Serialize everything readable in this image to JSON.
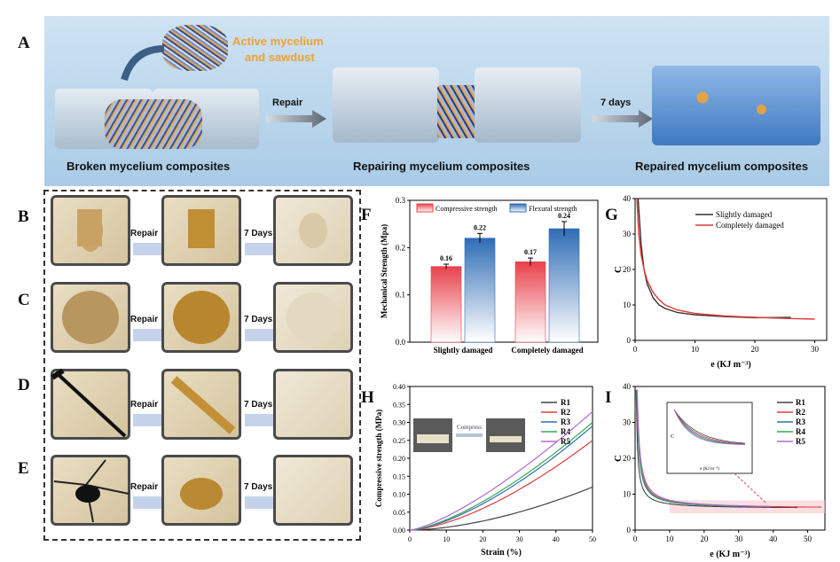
{
  "panel_letters": {
    "A": "A",
    "B": "B",
    "C": "C",
    "D": "D",
    "E": "E",
    "F": "F",
    "G": "G",
    "H": "H",
    "I": "I"
  },
  "panel_a": {
    "mycelium_label_1": "Active mycelium",
    "mycelium_label_2": "and sawdust",
    "arrow1": "Repair",
    "arrow2": "7 days",
    "caption_broken": "Broken mycelium composites",
    "caption_repairing": "Repairing mycelium composites",
    "caption_repaired": "Repaired mycelium composites"
  },
  "photo_rows": {
    "repair_label": "Repair",
    "days_label": "7 Days"
  },
  "chart_data": [
    {
      "id": "F",
      "type": "bar",
      "categories": [
        "Slightly damaged",
        "Completely damaged"
      ],
      "series": [
        {
          "name": "Compressive strength",
          "values": [
            0.16,
            0.17
          ],
          "errors": [
            0.005,
            0.008
          ],
          "color": "#e8414b"
        },
        {
          "name": "Flexural strength",
          "values": [
            0.22,
            0.24
          ],
          "errors": [
            0.01,
            0.015
          ],
          "color": "#2f6db5"
        }
      ],
      "value_labels": [
        "0.16",
        "0.22",
        "0.17",
        "0.24"
      ],
      "ylabel": "Mechanical Strength (Mpa)",
      "ylim": [
        0,
        0.3
      ],
      "yticks": [
        "0.0",
        "0.1",
        "0.2",
        "0.3"
      ],
      "legend": "top"
    },
    {
      "id": "G",
      "type": "line",
      "xlabel": "e (KJ m⁻³)",
      "ylabel": "C",
      "xlim": [
        0,
        32
      ],
      "ylim": [
        0,
        40
      ],
      "xticks": [
        "0",
        "10",
        "20",
        "30"
      ],
      "yticks": [
        "0",
        "10",
        "20",
        "30",
        "40"
      ],
      "series": [
        {
          "name": "Slightly damaged",
          "color": "#333333",
          "x": [
            0.5,
            1,
            1.5,
            2,
            3,
            4,
            5,
            7,
            10,
            15,
            20,
            26
          ],
          "y": [
            40,
            27,
            20,
            16,
            12,
            10,
            9,
            7.9,
            7.2,
            6.7,
            6.4,
            6.5
          ]
        },
        {
          "name": "Completely damaged",
          "color": "#e03a3a",
          "x": [
            0.3,
            0.6,
            1,
            1.5,
            2,
            3,
            4,
            5,
            7,
            10,
            15,
            20,
            25,
            30
          ],
          "y": [
            40,
            30,
            24,
            20,
            17,
            13.5,
            11.5,
            10,
            8.6,
            7.6,
            6.9,
            6.5,
            6.2,
            6.0
          ]
        }
      ],
      "legend": "top-right"
    },
    {
      "id": "H",
      "type": "line",
      "xlabel": "Strain (%)",
      "ylabel": "Compressive strength (MPa)",
      "xlim": [
        0,
        50
      ],
      "ylim": [
        0,
        0.4
      ],
      "xticks": [
        "0",
        "10",
        "20",
        "30",
        "40",
        "50"
      ],
      "yticks": [
        "0.00",
        "0.05",
        "0.10",
        "0.15",
        "0.20",
        "0.25",
        "0.30",
        "0.35",
        "0.40"
      ],
      "inset_label": "Compress",
      "series": [
        {
          "name": "R1",
          "color": "#444444",
          "end": 0.12,
          "exp": 1.7
        },
        {
          "name": "R2",
          "color": "#e03a3a",
          "end": 0.25,
          "exp": 1.55
        },
        {
          "name": "R3",
          "color": "#2f6db5",
          "end": 0.29,
          "exp": 1.5
        },
        {
          "name": "R4",
          "color": "#3aa655",
          "end": 0.3,
          "exp": 1.45
        },
        {
          "name": "R5",
          "color": "#b06ad6",
          "end": 0.33,
          "exp": 1.35
        }
      ],
      "legend": "top-right"
    },
    {
      "id": "I",
      "type": "line",
      "xlabel": "e (KJ m⁻³)",
      "ylabel": "C",
      "xlim": [
        0,
        55
      ],
      "ylim": [
        0,
        40
      ],
      "xticks": [
        "0",
        "10",
        "20",
        "30",
        "40",
        "50"
      ],
      "yticks": [
        "0",
        "10",
        "20",
        "30",
        "40"
      ],
      "series": [
        {
          "name": "R1",
          "color": "#444444",
          "k": 2.2,
          "end": 47
        },
        {
          "name": "R2",
          "color": "#e03a3a",
          "k": 3.6,
          "end": 54
        },
        {
          "name": "R3",
          "color": "#2f6db5",
          "k": 3.2,
          "end": 32
        },
        {
          "name": "R4",
          "color": "#3aa655",
          "k": 3.4,
          "end": 30
        },
        {
          "name": "R5",
          "color": "#b06ad6",
          "k": 4.0,
          "end": 39
        }
      ],
      "inset": {
        "xlabel": "e (KJ m⁻³)",
        "ylabel": "C"
      },
      "legend": "top-right"
    }
  ]
}
